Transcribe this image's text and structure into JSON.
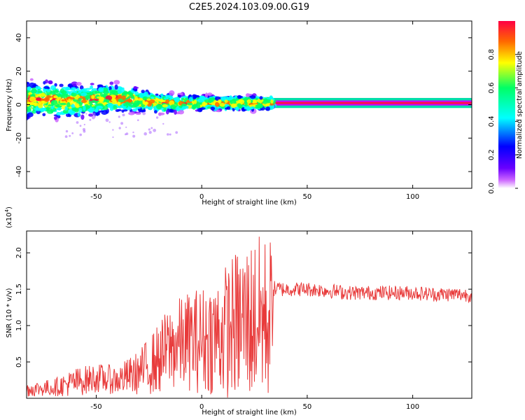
{
  "figure": {
    "title": "C2E5.2024.103.09.00.G19"
  },
  "chart_data": [
    {
      "type": "heatmap",
      "xlabel": "Height of straight line (km)",
      "ylabel": "Frequency (Hz)",
      "xlim": [
        -83,
        128
      ],
      "ylim": [
        -50,
        50
      ],
      "xticks": [
        -50,
        0,
        50,
        100
      ],
      "yticks": [
        -40,
        -20,
        0,
        20,
        40
      ],
      "colorbar": {
        "label": "Normalized spectral amplitude",
        "range": [
          0,
          1
        ],
        "ticks": [
          "0.0",
          "0.2",
          "0.4",
          "0.6",
          "0.8"
        ],
        "colors": [
          "#ffffff",
          "#cc66ff",
          "#6a00ff",
          "#0000ff",
          "#00ffff",
          "#00ff66",
          "#ffff00",
          "#ff6600",
          "#ff0044"
        ]
      },
      "ridge": [
        {
          "x": -80,
          "f": 3
        },
        {
          "x": -60,
          "f": 2
        },
        {
          "x": -40,
          "f": 4
        },
        {
          "x": -20,
          "f": 1
        },
        {
          "x": 0,
          "f": 1
        },
        {
          "x": 30,
          "f": 1
        },
        {
          "x": 33,
          "f": 1
        },
        {
          "x": 128,
          "f": 1
        }
      ],
      "spread": [
        {
          "x": -80,
          "w": 8
        },
        {
          "x": -40,
          "w": 6
        },
        {
          "x": -20,
          "w": 4
        },
        {
          "x": 0,
          "w": 3
        },
        {
          "x": 33,
          "w": 3
        },
        {
          "x": 34,
          "w": 1.5
        },
        {
          "x": 128,
          "w": 1.5
        }
      ]
    },
    {
      "type": "line",
      "xlabel": "Height of straight line (km)",
      "ylabel": "SNR (10 * v/v)",
      "y_multiplier": "(x10",
      "y_multiplier_exp": "4",
      "y_multiplier_close": ")",
      "xlim": [
        -83,
        128
      ],
      "ylim": [
        0,
        2.3
      ],
      "xticks": [
        -50,
        0,
        50,
        100
      ],
      "yticks": [
        0.5,
        1.0,
        1.5,
        2.0
      ],
      "ytick_labels": [
        "0.5",
        "1.0",
        "1.5",
        "2.0"
      ],
      "line_color": "#e83a3a",
      "envelope": {
        "x": [
          -83,
          -70,
          -60,
          -50,
          -40,
          -30,
          -20,
          -15,
          -10,
          -5,
          0,
          5,
          10,
          15,
          20,
          25,
          30,
          33,
          34,
          40,
          50,
          60,
          70,
          80,
          90,
          100,
          110,
          120,
          128
        ],
        "mid": [
          0.12,
          0.15,
          0.22,
          0.28,
          0.25,
          0.35,
          0.55,
          0.7,
          0.75,
          0.8,
          0.8,
          0.85,
          0.9,
          1.0,
          1.05,
          1.1,
          1.1,
          1.1,
          1.5,
          1.5,
          1.5,
          1.48,
          1.45,
          1.45,
          1.45,
          1.45,
          1.43,
          1.43,
          1.42
        ],
        "amp": [
          0.1,
          0.12,
          0.2,
          0.2,
          0.2,
          0.3,
          0.5,
          0.6,
          0.65,
          0.7,
          0.75,
          0.8,
          0.9,
          1.0,
          1.1,
          1.15,
          1.15,
          1.15,
          0.12,
          0.1,
          0.1,
          0.1,
          0.1,
          0.1,
          0.1,
          0.1,
          0.1,
          0.1,
          0.1
        ]
      }
    }
  ]
}
